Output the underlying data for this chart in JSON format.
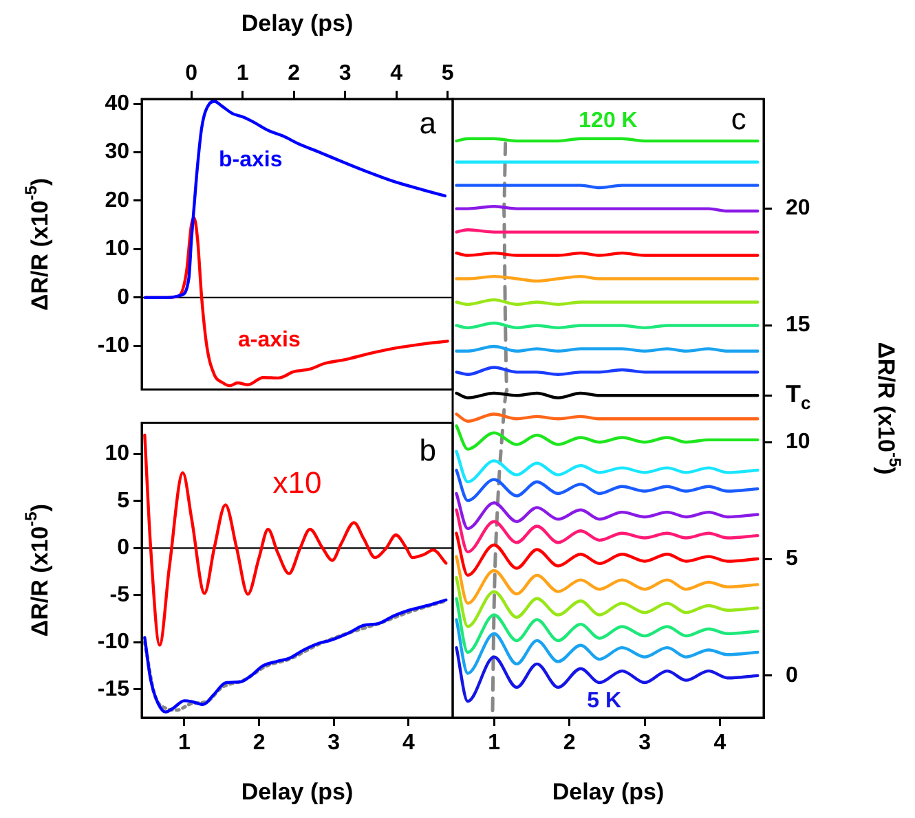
{
  "chart_data": [
    {
      "type": "line",
      "xlabel": "Delay (ps)",
      "ylabel": "ΔR/R (x10$^{-5}$)",
      "xlim": [
        -0.97,
        5.1
      ],
      "xticks": [
        0,
        1,
        2,
        3,
        4,
        5
      ],
      "ylim": [
        -19,
        41
      ],
      "yticks": [
        -10,
        0,
        10,
        20,
        30,
        40
      ],
      "ref_lines": [
        {
          "axis": "y",
          "value": 0,
          "color": "#000000"
        }
      ],
      "annotations": [
        "a",
        "b-axis",
        "a-axis"
      ],
      "series": [
        {
          "color": "#0000ff",
          "x": [
            -0.9,
            -0.5,
            -0.2,
            -0.05,
            0,
            0.1,
            0.2,
            0.35,
            0.45,
            0.6,
            0.8,
            1.0,
            1.2,
            1.5,
            1.8,
            2.1,
            2.5,
            3.0,
            3.5,
            4.0,
            4.5,
            4.95
          ],
          "values": [
            0,
            0,
            0.5,
            4,
            12,
            25,
            35,
            40,
            40.5,
            39.5,
            38,
            37.3,
            36.3,
            34.5,
            33.3,
            31.7,
            30,
            27.8,
            25.7,
            23.8,
            22.3,
            21
          ]
        },
        {
          "color": "#ff0000",
          "x": [
            -0.9,
            -0.5,
            -0.25,
            -0.1,
            0,
            0.05,
            0.12,
            0.2,
            0.3,
            0.45,
            0.6,
            0.75,
            0.9,
            1.1,
            1.4,
            1.7,
            2.0,
            2.3,
            2.6,
            3.0,
            3.5,
            4.0,
            4.5,
            5.0
          ],
          "values": [
            0,
            0,
            0.3,
            5,
            15,
            16.5,
            12,
            0,
            -10,
            -16,
            -17.5,
            -18.2,
            -17.6,
            -18,
            -16.5,
            -16.6,
            -15.3,
            -14.8,
            -13.6,
            -12.8,
            -11.5,
            -10.4,
            -9.6,
            -9
          ]
        }
      ]
    },
    {
      "type": "line",
      "xlabel": "Delay (ps)",
      "ylabel": "ΔR/R (x10$^{-5}$)",
      "xlim": [
        0.43,
        4.59
      ],
      "xticks": [
        1,
        2,
        3,
        4
      ],
      "ylim": [
        -18,
        13.3
      ],
      "yticks": [
        -15,
        -10,
        -5,
        0,
        5,
        10
      ],
      "ref_lines": [
        {
          "axis": "y",
          "value": 0,
          "color": "#000000"
        }
      ],
      "annotations": [
        "b",
        "x10"
      ],
      "series": [
        {
          "color": "#ff0000",
          "x": [
            0.47,
            0.55,
            0.67,
            0.8,
            0.98,
            1.1,
            1.27,
            1.4,
            1.55,
            1.7,
            1.85,
            2.0,
            2.12,
            2.25,
            2.4,
            2.55,
            2.68,
            2.85,
            2.98,
            3.1,
            3.27,
            3.4,
            3.55,
            3.7,
            3.83,
            3.97,
            4.05,
            4.2,
            4.33,
            4.5
          ],
          "values": [
            12,
            0,
            -10.3,
            -2,
            8,
            3,
            -4.8,
            0,
            4.6,
            0,
            -4.9,
            -1,
            2,
            -0.5,
            -2.7,
            0,
            2,
            0,
            -1.3,
            0.5,
            2.7,
            1,
            -1,
            0,
            1.4,
            0,
            -1,
            -0.7,
            -0.2,
            -1.6
          ]
        },
        {
          "color": "#0000ff",
          "x": [
            0.47,
            0.55,
            0.65,
            0.75,
            0.85,
            1.0,
            1.1,
            1.25,
            1.4,
            1.55,
            1.75,
            1.9,
            2.05,
            2.25,
            2.4,
            2.6,
            2.8,
            2.95,
            3.2,
            3.4,
            3.6,
            3.8,
            4.0,
            4.25,
            4.5
          ],
          "values": [
            -9.5,
            -14,
            -16.5,
            -17.4,
            -17,
            -16.2,
            -16.3,
            -16.6,
            -15.5,
            -14.3,
            -14.2,
            -13.5,
            -12.5,
            -12,
            -11.7,
            -10.8,
            -10.1,
            -9.8,
            -9,
            -8.2,
            -8,
            -7.2,
            -6.6,
            -6.1,
            -5.5
          ]
        },
        {
          "color": "#888888",
          "line_style": "dotted",
          "x": [
            0.47,
            0.6,
            0.75,
            0.9,
            1.1,
            1.3,
            1.5,
            1.8,
            2.1,
            2.4,
            2.8,
            3.2,
            3.6,
            4.0,
            4.5
          ],
          "values": [
            -10,
            -15.5,
            -17,
            -17.2,
            -16.5,
            -16.3,
            -14.8,
            -14,
            -12.5,
            -11.8,
            -10.2,
            -9,
            -8,
            -6.8,
            -5.6
          ]
        }
      ]
    },
    {
      "type": "line",
      "xlabel": "Delay (ps)",
      "y2label": "ΔR/R (x10$^{-5}$)",
      "xlim": [
        0.45,
        4.58
      ],
      "xticks": [
        1,
        2,
        3,
        4
      ],
      "y2lim": [
        -1.8,
        24.7
      ],
      "y2ticks": [
        0,
        5,
        10,
        {
          "value": 12,
          "label": "T$_{c}$"
        },
        15,
        20
      ],
      "annotations": [
        "c",
        "120 K",
        "5 K"
      ],
      "x": [
        0.5,
        0.65,
        1.0,
        1.3,
        1.57,
        1.85,
        2.15,
        2.4,
        2.7,
        3.0,
        3.3,
        3.55,
        3.85,
        4.1,
        4.5
      ],
      "series": [
        {
          "axis": "y2",
          "color": "#1515e6",
          "values": [
            1.2,
            -1.1,
            0.8,
            -0.5,
            0.5,
            -0.5,
            0.3,
            -0.3,
            0.2,
            -0.3,
            0.2,
            -0.2,
            0.2,
            -0.1,
            0
          ]
        },
        {
          "axis": "y2",
          "color": "#1aa3f0",
          "values": [
            2.4,
            0.1,
            1.8,
            0.5,
            1.5,
            0.6,
            1.3,
            0.7,
            1.2,
            0.8,
            1.2,
            0.8,
            1.1,
            0.9,
            1.0
          ]
        },
        {
          "axis": "y2",
          "color": "#1ee87a",
          "values": [
            3.3,
            1.0,
            2.6,
            1.5,
            2.4,
            1.5,
            2.2,
            1.6,
            2.1,
            1.7,
            2.1,
            1.7,
            2.0,
            1.8,
            1.9
          ]
        },
        {
          "axis": "y2",
          "color": "#99e619",
          "values": [
            4.2,
            2.1,
            3.6,
            2.5,
            3.3,
            2.6,
            3.2,
            2.6,
            3.1,
            2.7,
            3.1,
            2.7,
            3.0,
            2.8,
            2.9
          ]
        },
        {
          "axis": "y2",
          "color": "#ffa31a",
          "values": [
            5.1,
            3.1,
            4.5,
            3.5,
            4.3,
            3.6,
            4.1,
            3.7,
            4.1,
            3.7,
            4.1,
            3.7,
            4.0,
            3.8,
            3.9
          ]
        },
        {
          "axis": "y2",
          "color": "#ff0000",
          "values": [
            6.1,
            4.3,
            5.6,
            4.6,
            5.4,
            4.7,
            5.2,
            4.8,
            5.2,
            4.9,
            5.2,
            4.9,
            5.1,
            4.9,
            5.0
          ]
        },
        {
          "axis": "y2",
          "color": "#ff1a75",
          "values": [
            7.1,
            5.3,
            6.6,
            5.7,
            6.4,
            5.7,
            6.2,
            5.8,
            6.1,
            5.9,
            6.1,
            5.9,
            6.1,
            5.9,
            6.0
          ]
        },
        {
          "axis": "y2",
          "color": "#8a1ae6",
          "values": [
            7.8,
            6.3,
            7.4,
            6.6,
            7.2,
            6.7,
            7.1,
            6.7,
            7.0,
            6.8,
            7.0,
            6.8,
            7.0,
            6.8,
            6.9
          ]
        },
        {
          "axis": "y2",
          "color": "#1a5cff",
          "values": [
            8.8,
            7.5,
            8.4,
            7.7,
            8.3,
            7.8,
            8.2,
            7.8,
            8.1,
            7.9,
            8.1,
            7.9,
            8.1,
            7.9,
            8.0
          ]
        },
        {
          "axis": "y2",
          "color": "#19e6ff",
          "values": [
            9.6,
            8.3,
            9.2,
            8.6,
            9.1,
            8.6,
            9.0,
            8.7,
            8.9,
            8.7,
            8.9,
            8.7,
            8.9,
            8.7,
            8.8
          ]
        },
        {
          "axis": "y2",
          "color": "#1ee61e",
          "values": [
            10.7,
            9.7,
            10.4,
            9.9,
            10.3,
            9.9,
            10.2,
            10.0,
            10.2,
            10.0,
            10.2,
            10.0,
            10.1,
            10.1,
            10.1
          ]
        },
        {
          "axis": "y2",
          "color": "#ff6619",
          "values": [
            11.2,
            10.9,
            11.2,
            11.0,
            11.1,
            11.0,
            11.1,
            11.0,
            11.0,
            11.0,
            11.0,
            11.0,
            11.0,
            11.0,
            11.0
          ]
        },
        {
          "axis": "y2",
          "color": "#000000",
          "values": [
            12.1,
            11.9,
            12.1,
            12.0,
            12.1,
            11.9,
            12.1,
            12.0,
            12.0,
            12.0,
            12.0,
            12.0,
            12.0,
            12.0,
            12.0
          ]
        },
        {
          "axis": "y2",
          "color": "#1a3cff",
          "values": [
            13.0,
            12.9,
            13.2,
            13.0,
            13.0,
            12.9,
            13.0,
            13.0,
            13.1,
            13.0,
            13.0,
            13.0,
            13.0,
            13.0,
            13.0
          ]
        },
        {
          "axis": "y2",
          "color": "#1aa3f0",
          "values": [
            13.9,
            13.9,
            14.1,
            13.9,
            14.0,
            13.9,
            14.0,
            14.0,
            14.0,
            13.9,
            14.0,
            13.9,
            14.0,
            13.9,
            13.9
          ]
        },
        {
          "axis": "y2",
          "color": "#1ee87a",
          "values": [
            15.0,
            14.9,
            15.1,
            14.9,
            15.0,
            14.9,
            15.0,
            15.0,
            15.0,
            14.9,
            15.0,
            15.0,
            15.0,
            15.0,
            15.0
          ]
        },
        {
          "axis": "y2",
          "color": "#99e619",
          "values": [
            16.0,
            15.9,
            16.1,
            15.9,
            16.0,
            15.9,
            16.0,
            16.0,
            16.0,
            16.0,
            16.0,
            16.0,
            16.0,
            16.0,
            16.0
          ]
        },
        {
          "axis": "y2",
          "color": "#ffa31a",
          "values": [
            17.0,
            17.0,
            17.1,
            17.0,
            16.9,
            17.0,
            17.1,
            17.0,
            17.0,
            17.0,
            17.0,
            17.0,
            17.0,
            17.0,
            17.0
          ]
        },
        {
          "axis": "y2",
          "color": "#ff0000",
          "values": [
            18.1,
            18.0,
            18.1,
            18.0,
            18.0,
            18.0,
            18.1,
            18.0,
            18.1,
            18.0,
            18.0,
            18.0,
            18.0,
            18.0,
            18.0
          ]
        },
        {
          "axis": "y2",
          "color": "#ff1a75",
          "values": [
            19.0,
            19.1,
            19.0,
            19.0,
            19.0,
            19.0,
            19.0,
            19.0,
            19.0,
            19.0,
            19.0,
            19.0,
            19.0,
            19.0,
            19.0
          ]
        },
        {
          "axis": "y2",
          "color": "#8a1ae6",
          "values": [
            20.0,
            20.0,
            20.1,
            20.0,
            20.0,
            20.0,
            20.0,
            20.0,
            20.0,
            20.0,
            20.0,
            20.0,
            20.0,
            19.9,
            19.9
          ]
        },
        {
          "axis": "y2",
          "color": "#1a5cff",
          "values": [
            21.0,
            21.0,
            21.0,
            21.0,
            21.0,
            21.0,
            21.0,
            20.9,
            21.0,
            21.0,
            21.0,
            21.0,
            21.0,
            21.0,
            21.0
          ]
        },
        {
          "axis": "y2",
          "color": "#19e6ff",
          "values": [
            22.0,
            22.0,
            22.0,
            22.0,
            22.0,
            22.0,
            22.0,
            22.0,
            22.0,
            22.0,
            22.0,
            22.0,
            22.0,
            22.0,
            22.0
          ]
        },
        {
          "axis": "y2",
          "color": "#1ee61e",
          "values": [
            22.9,
            23.0,
            23.0,
            22.9,
            22.9,
            22.9,
            23.0,
            23.0,
            23.0,
            22.9,
            22.9,
            22.9,
            22.9,
            22.9,
            22.9
          ]
        },
        {
          "axis": "y2",
          "color": "#888888",
          "line_style": "dashed",
          "x": [
            0.98,
            1.0,
            1.05,
            1.1,
            1.17,
            1.15,
            1.13,
            1.15
          ],
          "values": [
            -1.5,
            3,
            7.5,
            10,
            12.2,
            15,
            20,
            22.8
          ]
        }
      ]
    }
  ]
}
